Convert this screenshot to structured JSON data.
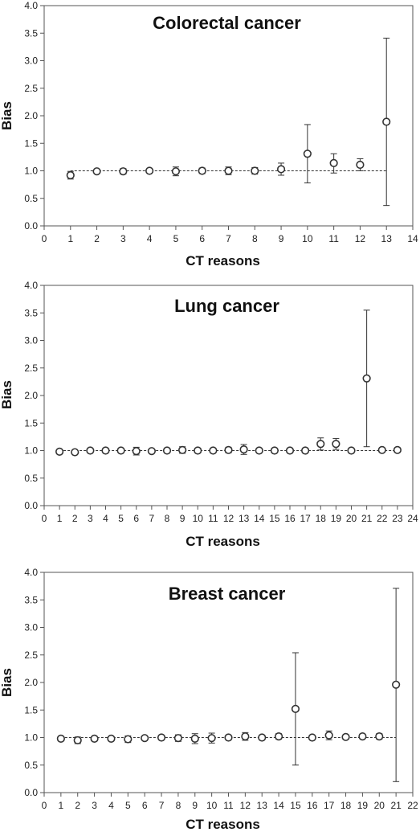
{
  "chart_data": [
    {
      "type": "scatter",
      "title": "Colorectal cancer",
      "xlabel": "CT reasons",
      "ylabel": "Bias",
      "xlim": [
        0,
        14
      ],
      "ylim": [
        0.0,
        4.0
      ],
      "xticks": [
        "0",
        "1",
        "2",
        "3",
        "4",
        "5",
        "6",
        "7",
        "8",
        "9",
        "10",
        "11",
        "12",
        "13",
        "14"
      ],
      "yticks": [
        "0.0",
        "0.5",
        "1.0",
        "1.5",
        "2.0",
        "2.5",
        "3.0",
        "3.5",
        "4.0"
      ],
      "reference_line": 1.0,
      "points": [
        {
          "x": 1,
          "y": 0.92,
          "lo": 0.85,
          "hi": 0.99
        },
        {
          "x": 2,
          "y": 0.99,
          "lo": 0.96,
          "hi": 1.02
        },
        {
          "x": 3,
          "y": 0.99,
          "lo": 0.94,
          "hi": 1.04
        },
        {
          "x": 4,
          "y": 1.0,
          "lo": 0.97,
          "hi": 1.03
        },
        {
          "x": 5,
          "y": 0.99,
          "lo": 0.91,
          "hi": 1.07
        },
        {
          "x": 6,
          "y": 1.0,
          "lo": 0.95,
          "hi": 1.05
        },
        {
          "x": 7,
          "y": 1.0,
          "lo": 0.93,
          "hi": 1.07
        },
        {
          "x": 8,
          "y": 1.0,
          "lo": 0.94,
          "hi": 1.06
        },
        {
          "x": 9,
          "y": 1.03,
          "lo": 0.92,
          "hi": 1.14
        },
        {
          "x": 10,
          "y": 1.31,
          "lo": 0.78,
          "hi": 1.84
        },
        {
          "x": 11,
          "y": 1.14,
          "lo": 0.96,
          "hi": 1.31
        },
        {
          "x": 12,
          "y": 1.11,
          "lo": 1.0,
          "hi": 1.22
        },
        {
          "x": 13,
          "y": 1.89,
          "lo": 0.37,
          "hi": 3.41
        }
      ]
    },
    {
      "type": "scatter",
      "title": "Lung cancer",
      "xlabel": "CT reasons",
      "ylabel": "Bias",
      "xlim": [
        0,
        24
      ],
      "ylim": [
        0.0,
        4.0
      ],
      "xticks": [
        "0",
        "1",
        "2",
        "3",
        "4",
        "5",
        "6",
        "7",
        "8",
        "9",
        "10",
        "11",
        "12",
        "13",
        "14",
        "15",
        "16",
        "17",
        "18",
        "19",
        "20",
        "21",
        "22",
        "23",
        "24"
      ],
      "yticks": [
        "0.0",
        "0.5",
        "1.0",
        "1.5",
        "2.0",
        "2.5",
        "3.0",
        "3.5",
        "4.0"
      ],
      "reference_line": 1.0,
      "points": [
        {
          "x": 1,
          "y": 0.98,
          "lo": 0.96,
          "hi": 1.0
        },
        {
          "x": 2,
          "y": 0.97,
          "lo": 0.95,
          "hi": 0.99
        },
        {
          "x": 3,
          "y": 1.0,
          "lo": 0.98,
          "hi": 1.02
        },
        {
          "x": 4,
          "y": 1.0,
          "lo": 0.98,
          "hi": 1.02
        },
        {
          "x": 5,
          "y": 1.0,
          "lo": 0.97,
          "hi": 1.03
        },
        {
          "x": 6,
          "y": 0.99,
          "lo": 0.92,
          "hi": 1.06
        },
        {
          "x": 7,
          "y": 0.99,
          "lo": 0.96,
          "hi": 1.02
        },
        {
          "x": 8,
          "y": 1.0,
          "lo": 0.97,
          "hi": 1.03
        },
        {
          "x": 9,
          "y": 1.01,
          "lo": 0.95,
          "hi": 1.07
        },
        {
          "x": 10,
          "y": 1.0,
          "lo": 0.96,
          "hi": 1.04
        },
        {
          "x": 11,
          "y": 1.0,
          "lo": 0.97,
          "hi": 1.03
        },
        {
          "x": 12,
          "y": 1.01,
          "lo": 0.96,
          "hi": 1.06
        },
        {
          "x": 13,
          "y": 1.02,
          "lo": 0.93,
          "hi": 1.11
        },
        {
          "x": 14,
          "y": 1.0,
          "lo": 0.97,
          "hi": 1.03
        },
        {
          "x": 15,
          "y": 1.0,
          "lo": 0.97,
          "hi": 1.03
        },
        {
          "x": 16,
          "y": 1.0,
          "lo": 0.98,
          "hi": 1.02
        },
        {
          "x": 17,
          "y": 1.0,
          "lo": 0.97,
          "hi": 1.03
        },
        {
          "x": 18,
          "y": 1.12,
          "lo": 1.01,
          "hi": 1.23
        },
        {
          "x": 19,
          "y": 1.12,
          "lo": 1.02,
          "hi": 1.22
        },
        {
          "x": 20,
          "y": 1.0,
          "lo": 0.98,
          "hi": 1.02
        },
        {
          "x": 21,
          "y": 2.31,
          "lo": 1.07,
          "hi": 3.55
        },
        {
          "x": 22,
          "y": 1.01,
          "lo": 0.98,
          "hi": 1.04
        },
        {
          "x": 23,
          "y": 1.01,
          "lo": 0.97,
          "hi": 1.05
        }
      ]
    },
    {
      "type": "scatter",
      "title": "Breast cancer",
      "xlabel": "CT reasons",
      "ylabel": "Bias",
      "xlim": [
        0,
        22
      ],
      "ylim": [
        0.0,
        4.0
      ],
      "xticks": [
        "0",
        "1",
        "2",
        "3",
        "4",
        "5",
        "6",
        "7",
        "8",
        "9",
        "10",
        "11",
        "12",
        "13",
        "14",
        "15",
        "16",
        "17",
        "18",
        "19",
        "20",
        "21",
        "22"
      ],
      "yticks": [
        "0.0",
        "0.5",
        "1.0",
        "1.5",
        "2.0",
        "2.5",
        "3.0",
        "3.5",
        "4.0"
      ],
      "reference_line": 1.0,
      "points": [
        {
          "x": 1,
          "y": 0.98,
          "lo": 0.96,
          "hi": 1.0
        },
        {
          "x": 2,
          "y": 0.95,
          "lo": 0.89,
          "hi": 1.01
        },
        {
          "x": 3,
          "y": 0.98,
          "lo": 0.94,
          "hi": 1.02
        },
        {
          "x": 4,
          "y": 0.98,
          "lo": 0.95,
          "hi": 1.01
        },
        {
          "x": 5,
          "y": 0.97,
          "lo": 0.91,
          "hi": 1.03
        },
        {
          "x": 6,
          "y": 0.99,
          "lo": 0.96,
          "hi": 1.02
        },
        {
          "x": 7,
          "y": 1.0,
          "lo": 0.97,
          "hi": 1.03
        },
        {
          "x": 8,
          "y": 0.99,
          "lo": 0.93,
          "hi": 1.05
        },
        {
          "x": 9,
          "y": 0.98,
          "lo": 0.89,
          "hi": 1.07
        },
        {
          "x": 10,
          "y": 0.99,
          "lo": 0.9,
          "hi": 1.08
        },
        {
          "x": 11,
          "y": 1.0,
          "lo": 0.97,
          "hi": 1.03
        },
        {
          "x": 12,
          "y": 1.02,
          "lo": 0.95,
          "hi": 1.09
        },
        {
          "x": 13,
          "y": 1.0,
          "lo": 0.97,
          "hi": 1.03
        },
        {
          "x": 14,
          "y": 1.02,
          "lo": 0.97,
          "hi": 1.07
        },
        {
          "x": 15,
          "y": 1.52,
          "lo": 0.5,
          "hi": 2.54
        },
        {
          "x": 16,
          "y": 1.0,
          "lo": 0.97,
          "hi": 1.03
        },
        {
          "x": 17,
          "y": 1.04,
          "lo": 0.96,
          "hi": 1.12
        },
        {
          "x": 18,
          "y": 1.01,
          "lo": 0.97,
          "hi": 1.05
        },
        {
          "x": 19,
          "y": 1.02,
          "lo": 0.98,
          "hi": 1.06
        },
        {
          "x": 20,
          "y": 1.02,
          "lo": 0.97,
          "hi": 1.07
        },
        {
          "x": 21,
          "y": 1.96,
          "lo": 0.2,
          "hi": 3.71
        }
      ]
    }
  ]
}
